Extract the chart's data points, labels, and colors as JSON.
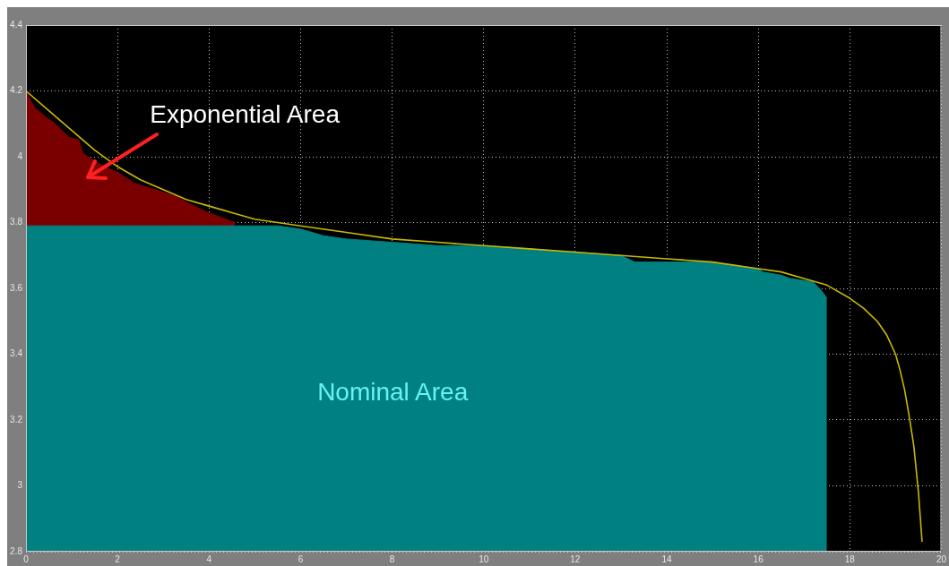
{
  "chart_data": {
    "type": "area",
    "xlim": [
      0,
      20
    ],
    "xticks": [
      0,
      2,
      4,
      6,
      8,
      10,
      12,
      14,
      16,
      18,
      20
    ],
    "ylim": [
      2.8,
      4.4
    ],
    "yticks": [
      2.8,
      3,
      3.2,
      3.4,
      3.6,
      3.8,
      4,
      4.2,
      4.4
    ],
    "grid": true,
    "legend": false,
    "marker": "none",
    "series": [
      {
        "name": "Exponential Area",
        "color": "#7a0000",
        "x": [
          0,
          0.18,
          0.44,
          0.64,
          0.93,
          1.16,
          1.24,
          1.58,
          2.03,
          2.36,
          3.27,
          3.53,
          3.98,
          4.57
        ],
        "values": [
          4.2,
          4.15,
          4.12,
          4.1,
          4.06,
          4.05,
          4.01,
          3.98,
          3.95,
          3.92,
          3.88,
          3.86,
          3.83,
          3.8
        ]
      },
      {
        "name": "Nominal Area",
        "color": "#008080",
        "x": [
          0,
          1,
          2,
          3,
          4,
          5,
          5.5,
          6,
          6.5,
          7,
          8,
          9,
          10,
          11,
          12,
          13,
          13.3,
          14,
          15,
          16,
          16.1,
          16.5,
          16.7,
          17.2,
          17.4,
          17.5
        ],
        "values": [
          3.79,
          3.79,
          3.79,
          3.79,
          3.79,
          3.79,
          3.79,
          3.78,
          3.76,
          3.75,
          3.74,
          3.73,
          3.73,
          3.72,
          3.71,
          3.7,
          3.68,
          3.68,
          3.68,
          3.66,
          3.65,
          3.64,
          3.63,
          3.62,
          3.59,
          3.57
        ]
      },
      {
        "type": "line",
        "color": "#c9b800",
        "x": [
          0,
          0.5,
          1,
          1.5,
          2,
          2.5,
          3,
          3.5,
          4,
          4.5,
          5,
          5.5,
          6,
          7,
          8,
          9,
          10,
          11,
          12,
          13,
          14,
          15,
          16,
          16.5,
          17,
          17.5,
          18,
          18.3,
          18.6,
          18.8,
          19,
          19.1,
          19.2,
          19.3,
          19.4,
          19.5,
          19.58
        ],
        "values": [
          4.2,
          4.14,
          4.08,
          4.02,
          3.97,
          3.93,
          3.9,
          3.87,
          3.85,
          3.83,
          3.81,
          3.8,
          3.79,
          3.77,
          3.75,
          3.74,
          3.73,
          3.72,
          3.71,
          3.7,
          3.69,
          3.68,
          3.66,
          3.65,
          3.63,
          3.61,
          3.57,
          3.54,
          3.5,
          3.46,
          3.4,
          3.35,
          3.29,
          3.21,
          3.12,
          2.98,
          2.83
        ]
      }
    ]
  }
}
